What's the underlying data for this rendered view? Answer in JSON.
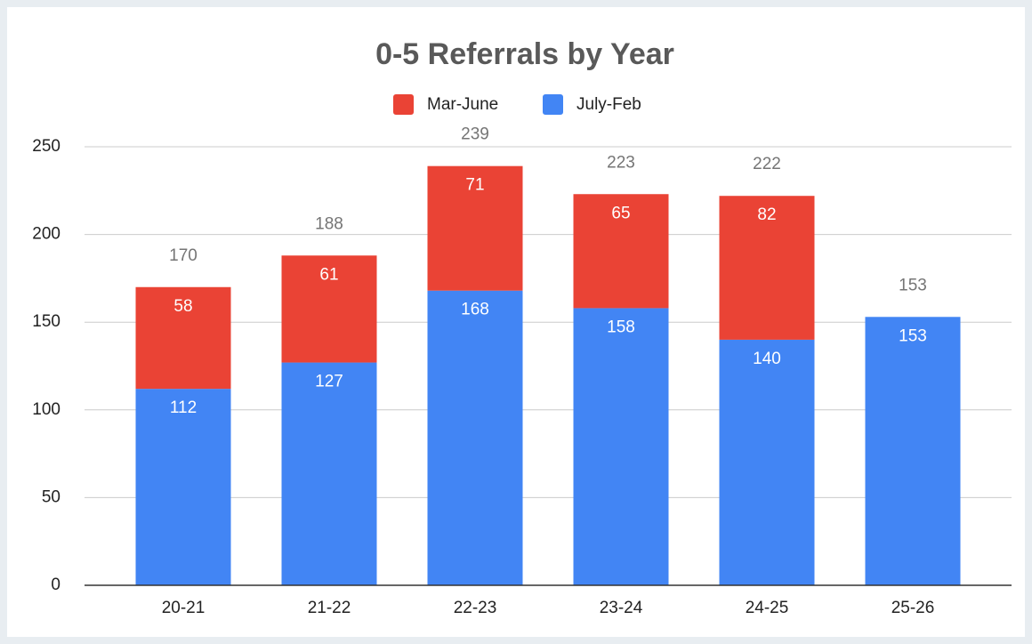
{
  "chart_data": {
    "type": "stacked_bar",
    "title": "0-5 Referrals by Year",
    "categories": [
      "20-21",
      "21-22",
      "22-23",
      "23-24",
      "24-25",
      "25-26"
    ],
    "series": [
      {
        "name": "Mar-June",
        "color": "#ea4335",
        "values": [
          58,
          61,
          71,
          65,
          82,
          null
        ]
      },
      {
        "name": "July-Feb",
        "color": "#4285f4",
        "values": [
          112,
          127,
          168,
          158,
          140,
          153
        ]
      }
    ],
    "totals": [
      170,
      188,
      239,
      223,
      222,
      153
    ],
    "ylim": [
      0,
      250
    ],
    "yticks": [
      0,
      50,
      100,
      150,
      200,
      250
    ],
    "grid": true,
    "legend": "top"
  }
}
